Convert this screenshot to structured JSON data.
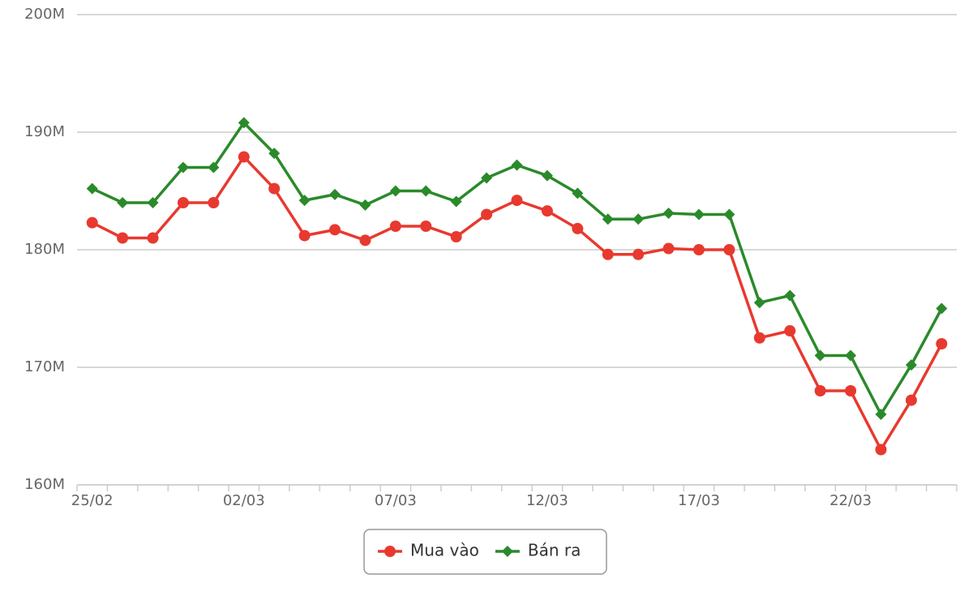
{
  "chart_data": {
    "type": "line",
    "categories": [
      "25/02",
      null,
      null,
      null,
      null,
      "02/03",
      null,
      null,
      null,
      null,
      "07/03",
      null,
      null,
      null,
      null,
      "12/03",
      null,
      null,
      null,
      null,
      "17/03",
      null,
      null,
      null,
      null,
      "22/03",
      null,
      null,
      null
    ],
    "series": [
      {
        "name": "Mua vào",
        "color": "#e8392f",
        "marker": "circle",
        "values": [
          182.3,
          181.0,
          181.0,
          184.0,
          184.0,
          187.9,
          185.2,
          181.2,
          181.7,
          180.8,
          182.0,
          182.0,
          181.1,
          183.0,
          184.2,
          183.3,
          181.8,
          179.6,
          179.6,
          180.1,
          180.0,
          180.0,
          172.5,
          173.1,
          168.0,
          168.0,
          163.0,
          167.2,
          172.0
        ]
      },
      {
        "name": "Bán ra",
        "color": "#2a8a2a",
        "marker": "diamond",
        "values": [
          185.2,
          184.0,
          184.0,
          187.0,
          187.0,
          190.8,
          188.2,
          184.2,
          184.7,
          183.8,
          185.0,
          185.0,
          184.1,
          186.1,
          187.2,
          186.3,
          184.8,
          182.6,
          182.6,
          183.1,
          183.0,
          183.0,
          175.5,
          176.1,
          171.0,
          171.0,
          166.0,
          170.2,
          175.0
        ]
      }
    ],
    "ylim": [
      160,
      200
    ],
    "yticks": [
      {
        "value": 160,
        "label": "160M"
      },
      {
        "value": 170,
        "label": "170M"
      },
      {
        "value": 180,
        "label": "180M"
      },
      {
        "value": 190,
        "label": "190M"
      },
      {
        "value": 200,
        "label": "200M"
      }
    ],
    "grid": true,
    "legend": "bottom"
  }
}
